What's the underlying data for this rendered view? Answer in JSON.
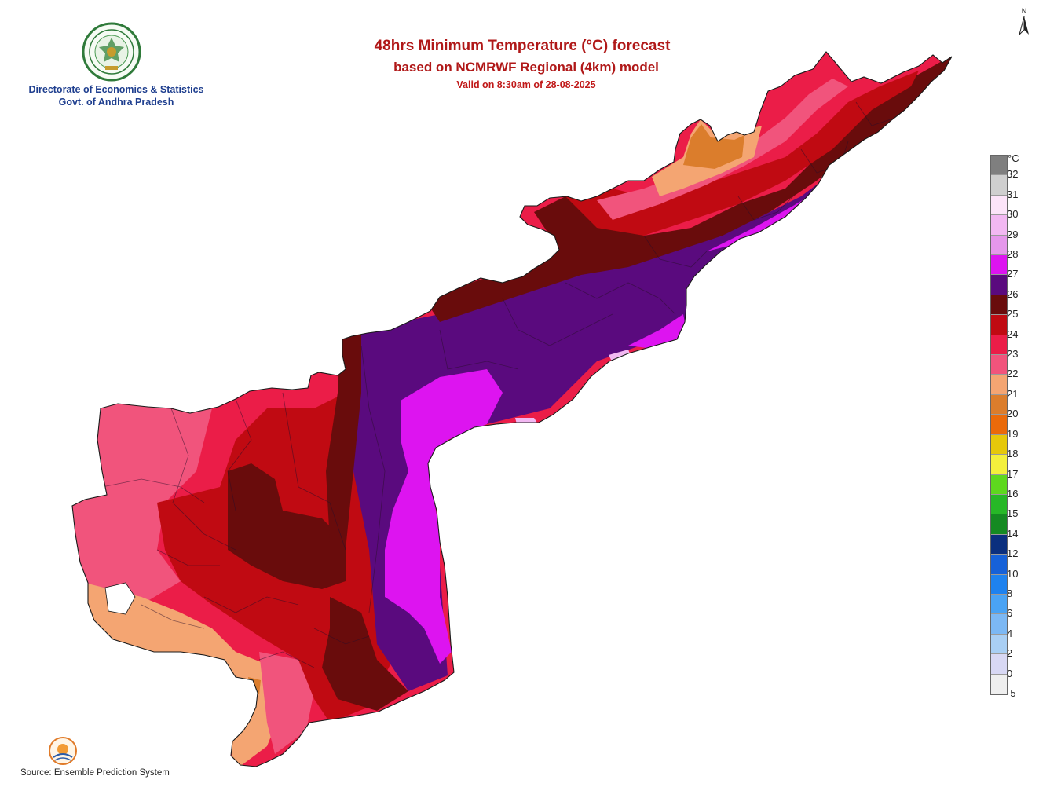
{
  "organization": {
    "line1": "Directorate of Economics & Statistics",
    "line2": "Govt. of Andhra Pradesh"
  },
  "title": {
    "line1": "48hrs Minimum Temperature (°C) forecast",
    "line2": "based on NCMRWF Regional (4km) model",
    "line3": "Valid on 8:30am of 28-08-2025"
  },
  "north_arrow": {
    "label": "N"
  },
  "legend": {
    "unit": "°C",
    "ticks": [
      "32",
      "31",
      "30",
      "29",
      "28",
      "27",
      "26",
      "25",
      "24",
      "23",
      "22",
      "21",
      "20",
      "19",
      "18",
      "17",
      "16",
      "15",
      "14",
      "12",
      "10",
      "8",
      "6",
      "4",
      "2",
      "0",
      "-5"
    ],
    "colors": [
      "#7f7f7f",
      "#cfcfcf",
      "#fce4f9",
      "#f2b8f2",
      "#e597eb",
      "#dd14f0",
      "#5a0a7e",
      "#690c0c",
      "#c00a12",
      "#eb1d48",
      "#f1547c",
      "#f4a572",
      "#db7d2c",
      "#ea6a0a",
      "#e6c80a",
      "#f4f03c",
      "#5ed81e",
      "#27b827",
      "#158a22",
      "#0b2f7e",
      "#1661d8",
      "#1e82ef",
      "#4aa3f4",
      "#7cb8f4",
      "#a9cff4",
      "#d8d8f4",
      "#efefef"
    ]
  },
  "map": {
    "region": "Andhra Pradesh",
    "zone_colors": {
      "coast_purple": "#dd14f0",
      "inland_purple": "#5a0a7e",
      "maroon": "#690c0c",
      "red": "#c00a12",
      "crimson": "#eb1d48",
      "pink": "#f1547c",
      "peach": "#f4a572",
      "orange": "#db7d2c",
      "light_pink": "#f2b8f2"
    }
  },
  "footer": {
    "source": "Source: Ensemble Prediction System"
  }
}
